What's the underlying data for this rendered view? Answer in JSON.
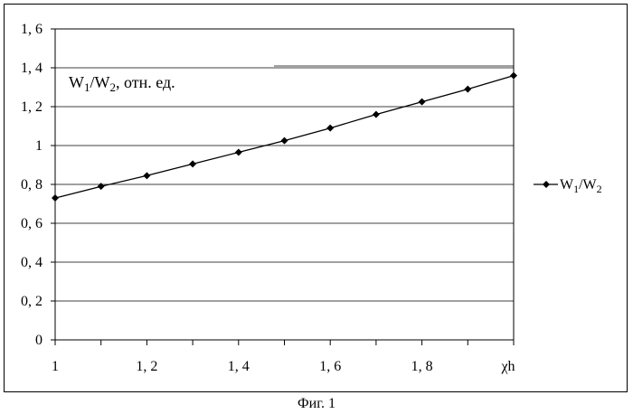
{
  "caption": "Фиг. 1",
  "chart_data": {
    "type": "line",
    "title": "",
    "xlabel": "χh",
    "ylabel": "",
    "annotation": {
      "main": "W",
      "sub1": "1",
      "mid": "/W",
      "sub2": "2",
      "tail": ", отн. ед."
    },
    "x": [
      1.0,
      1.1,
      1.2,
      1.3,
      1.4,
      1.5,
      1.6,
      1.7,
      1.8,
      1.9,
      2.0
    ],
    "series": [
      {
        "name": "W1/W2",
        "values": [
          0.73,
          0.79,
          0.845,
          0.905,
          0.965,
          1.025,
          1.09,
          1.16,
          1.225,
          1.29,
          1.36
        ],
        "color": "#000000",
        "marker": "diamond"
      }
    ],
    "legend_label": {
      "main": "W",
      "sub1": "1",
      "mid": "/W",
      "sub2": "2"
    },
    "legend_position": "right",
    "xlim": [
      1.0,
      2.0
    ],
    "ylim": [
      0,
      1.6
    ],
    "x_ticks": [
      {
        "value": 1.0,
        "label": "1"
      },
      {
        "value": 1.2,
        "label": "1, 2"
      },
      {
        "value": 1.4,
        "label": "1, 4"
      },
      {
        "value": 1.6,
        "label": "1, 6"
      },
      {
        "value": 1.8,
        "label": "1, 8"
      }
    ],
    "y_ticks": [
      {
        "value": 0,
        "label": "0"
      },
      {
        "value": 0.2,
        "label": "0, 2"
      },
      {
        "value": 0.4,
        "label": "0, 4"
      },
      {
        "value": 0.6,
        "label": "0, 6"
      },
      {
        "value": 0.8,
        "label": "0, 8"
      },
      {
        "value": 1.0,
        "label": "1"
      },
      {
        "value": 1.2,
        "label": "1, 2"
      },
      {
        "value": 1.4,
        "label": "1, 4"
      },
      {
        "value": 1.6,
        "label": "1, 6"
      }
    ],
    "grid": "horizontal"
  }
}
